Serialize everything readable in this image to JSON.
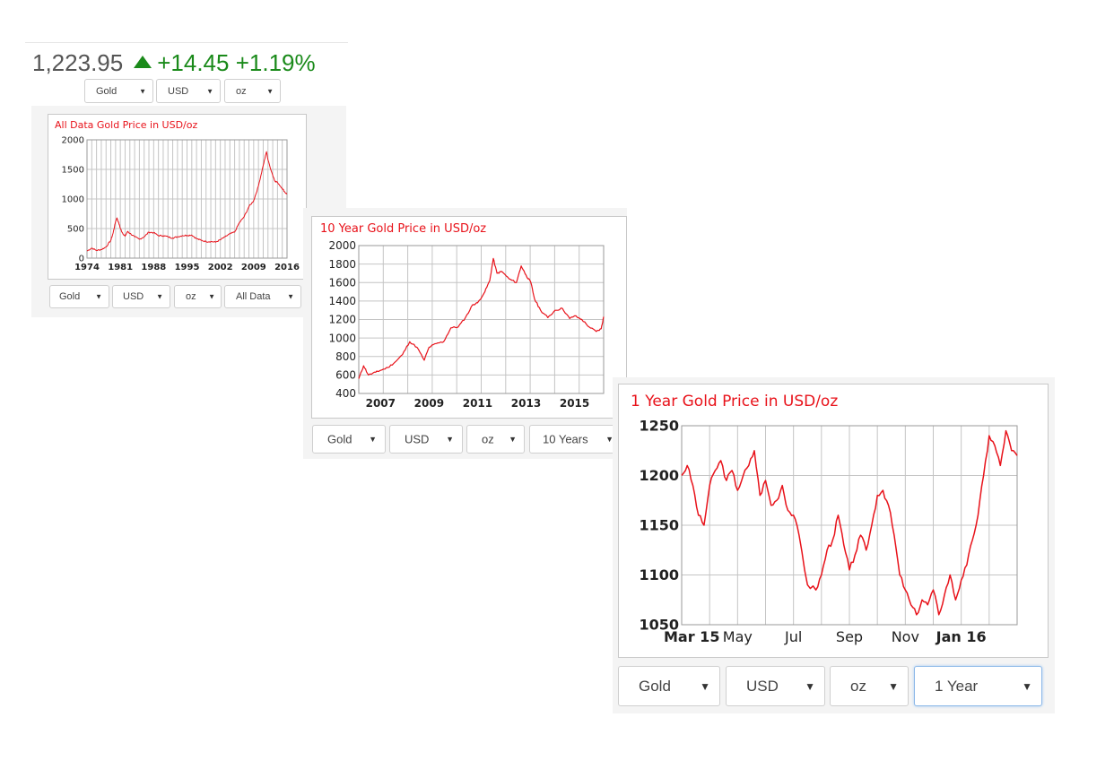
{
  "ticker": {
    "price": "1,223.95",
    "change": "+14.45",
    "percent": "+1.19%",
    "up_icon": "triangle-up-icon",
    "up_color": "#1a8a1a"
  },
  "top_selectors": {
    "metal": "Gold",
    "currency": "USD",
    "unit": "oz"
  },
  "line_color": "#e8121a",
  "chart_data": [
    {
      "type": "line",
      "title": "All Data Gold Price in USD/oz",
      "ylim": [
        0,
        2000
      ],
      "yticks": [
        0,
        500,
        1000,
        1500,
        2000
      ],
      "xlim": [
        1974,
        2016
      ],
      "xticks": [
        1974,
        1981,
        1988,
        1995,
        2002,
        2009,
        2016
      ],
      "grid": true,
      "x": [
        1974,
        1975,
        1976,
        1977,
        1978,
        1979,
        1979.5,
        1980,
        1980.3,
        1980.8,
        1981,
        1981.5,
        1982,
        1982.5,
        1983,
        1984,
        1985,
        1986,
        1987,
        1988,
        1989,
        1990,
        1991,
        1992,
        1993,
        1994,
        1995,
        1996,
        1997,
        1998,
        1999,
        2000,
        2001,
        2002,
        2003,
        2004,
        2005,
        2006,
        2007,
        2008,
        2009,
        2010,
        2011,
        2011.7,
        2012,
        2013,
        2013.5,
        2014,
        2015,
        2015.5,
        2016
      ],
      "y": [
        120,
        170,
        130,
        145,
        190,
        300,
        430,
        620,
        680,
        560,
        500,
        420,
        370,
        450,
        420,
        360,
        320,
        360,
        440,
        430,
        380,
        380,
        360,
        340,
        360,
        380,
        385,
        390,
        330,
        300,
        280,
        280,
        270,
        310,
        360,
        410,
        440,
        600,
        700,
        870,
        970,
        1220,
        1570,
        1800,
        1660,
        1400,
        1300,
        1280,
        1180,
        1120,
        1080
      ],
      "selectors": {
        "metal": "Gold",
        "currency": "USD",
        "unit": "oz",
        "range": "All Data"
      }
    },
    {
      "type": "line",
      "title": "10 Year Gold Price in USD/oz",
      "ylim": [
        400,
        2000
      ],
      "yticks": [
        400,
        600,
        800,
        1000,
        1200,
        1400,
        1600,
        1800,
        2000
      ],
      "xlim": [
        2006.1,
        2016.2
      ],
      "xticks": [
        2007,
        2009,
        2011,
        2013,
        2015
      ],
      "grid": true,
      "x": [
        2006.1,
        2006.3,
        2006.5,
        2006.8,
        2007,
        2007.3,
        2007.6,
        2007.9,
        2008.2,
        2008.5,
        2008.8,
        2009,
        2009.3,
        2009.6,
        2009.9,
        2010.2,
        2010.5,
        2010.8,
        2011,
        2011.3,
        2011.5,
        2011.65,
        2011.8,
        2012,
        2012.3,
        2012.6,
        2012.8,
        2013,
        2013.2,
        2013.35,
        2013.6,
        2013.9,
        2014.2,
        2014.5,
        2014.8,
        2015,
        2015.3,
        2015.6,
        2015.9,
        2016.1,
        2016.2
      ],
      "y": [
        560,
        700,
        600,
        630,
        650,
        680,
        740,
        820,
        960,
        900,
        760,
        900,
        940,
        960,
        1110,
        1120,
        1220,
        1360,
        1380,
        1500,
        1620,
        1860,
        1700,
        1720,
        1640,
        1600,
        1780,
        1680,
        1600,
        1420,
        1300,
        1220,
        1300,
        1320,
        1210,
        1240,
        1200,
        1120,
        1070,
        1100,
        1230
      ],
      "selectors": {
        "metal": "Gold",
        "currency": "USD",
        "unit": "oz",
        "range": "10 Years"
      }
    },
    {
      "type": "line",
      "title": "1 Year Gold Price in USD/oz",
      "ylim": [
        1050,
        1250
      ],
      "yticks": [
        1050,
        1100,
        1150,
        1200,
        1250
      ],
      "xlim": [
        0,
        12
      ],
      "xtick_positions": [
        0,
        2,
        4,
        6,
        8,
        10
      ],
      "xtick_labels": [
        "Mar 15",
        "May",
        "Jul",
        "Sep",
        "Nov",
        "Jan 16"
      ],
      "xtick_bold": [
        "Mar 15",
        "Jan 16"
      ],
      "grid": true,
      "x": [
        0,
        0.2,
        0.4,
        0.6,
        0.8,
        1.0,
        1.2,
        1.4,
        1.6,
        1.8,
        2.0,
        2.2,
        2.4,
        2.6,
        2.8,
        3.0,
        3.2,
        3.4,
        3.6,
        3.8,
        4.0,
        4.2,
        4.5,
        4.8,
        5.0,
        5.2,
        5.4,
        5.6,
        5.8,
        6.0,
        6.2,
        6.4,
        6.6,
        6.8,
        7.0,
        7.2,
        7.4,
        7.6,
        7.8,
        8.0,
        8.2,
        8.4,
        8.6,
        8.8,
        9.0,
        9.2,
        9.4,
        9.6,
        9.8,
        10.0,
        10.2,
        10.4,
        10.6,
        10.8,
        11.0,
        11.2,
        11.4,
        11.6,
        11.8,
        12.0
      ],
      "y": [
        1200,
        1210,
        1190,
        1160,
        1150,
        1190,
        1205,
        1215,
        1195,
        1205,
        1185,
        1200,
        1210,
        1225,
        1180,
        1195,
        1170,
        1175,
        1190,
        1165,
        1160,
        1140,
        1090,
        1085,
        1100,
        1125,
        1135,
        1160,
        1130,
        1105,
        1120,
        1140,
        1125,
        1150,
        1180,
        1185,
        1170,
        1140,
        1100,
        1085,
        1070,
        1060,
        1075,
        1070,
        1085,
        1060,
        1080,
        1100,
        1075,
        1095,
        1110,
        1135,
        1160,
        1200,
        1240,
        1230,
        1210,
        1245,
        1225,
        1220
      ],
      "selectors": {
        "metal": "Gold",
        "currency": "USD",
        "unit": "oz",
        "range": "1 Year"
      }
    }
  ]
}
